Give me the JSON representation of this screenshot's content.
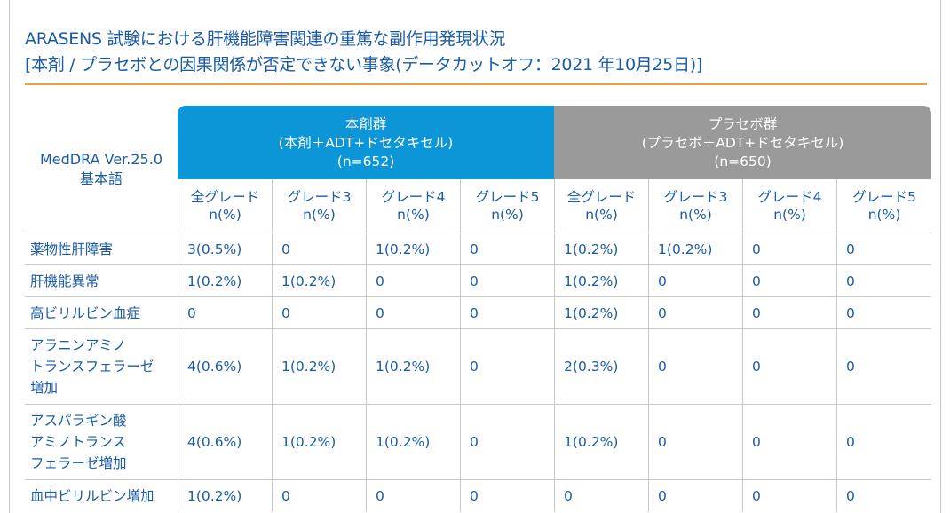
{
  "title": {
    "line1": "ARASENS 試験における肝機能障害関連の重篤な副作用発現状況",
    "line2": "[本剤 / プラセボとの因果関係が否定できない事象(データカットオフ：2021 年10月25日)]"
  },
  "table": {
    "corner": {
      "line1": "MedDRA Ver.25.0",
      "line2": "基本語"
    },
    "groups": [
      {
        "name": "本剤群",
        "regimen": "(本剤＋ADT+ドセタキセル)",
        "n": "(n=652)"
      },
      {
        "name": "プラセボ群",
        "regimen": "(プラセボ＋ADT+ドセタキセル)",
        "n": "(n=650)"
      }
    ],
    "subheaders": [
      {
        "grade": "全グレード",
        "unit": "n(%)"
      },
      {
        "grade": "グレード3",
        "unit": "n(%)"
      },
      {
        "grade": "グレード4",
        "unit": "n(%)"
      },
      {
        "grade": "グレード5",
        "unit": "n(%)"
      },
      {
        "grade": "全グレード",
        "unit": "n(%)"
      },
      {
        "grade": "グレード3",
        "unit": "n(%)"
      },
      {
        "grade": "グレード4",
        "unit": "n(%)"
      },
      {
        "grade": "グレード5",
        "unit": "n(%)"
      }
    ],
    "rows": [
      {
        "term": [
          "薬物性肝障害"
        ],
        "values": [
          "3(0.5%)",
          "0",
          "1(0.2%)",
          "0",
          "1(0.2%)",
          "1(0.2%)",
          "0",
          "0"
        ]
      },
      {
        "term": [
          "肝機能異常"
        ],
        "values": [
          "1(0.2%)",
          "1(0.2%)",
          "0",
          "0",
          "1(0.2%)",
          "0",
          "0",
          "0"
        ]
      },
      {
        "term": [
          "高ビリルビン血症"
        ],
        "values": [
          "0",
          "0",
          "0",
          "0",
          "1(0.2%)",
          "0",
          "0",
          "0"
        ]
      },
      {
        "term": [
          "アラニンアミノ",
          "トランスフェラーゼ",
          "増加"
        ],
        "values": [
          "4(0.6%)",
          "1(0.2%)",
          "1(0.2%)",
          "0",
          "2(0.3%)",
          "0",
          "0",
          "0"
        ]
      },
      {
        "term": [
          "アスパラギン酸",
          "アミノトランス",
          "フェラーゼ増加"
        ],
        "values": [
          "4(0.6%)",
          "1(0.2%)",
          "1(0.2%)",
          "0",
          "1(0.2%)",
          "0",
          "0",
          "0"
        ]
      },
      {
        "term": [
          "血中ビリルビン増加"
        ],
        "values": [
          "1(0.2%)",
          "0",
          "0",
          "0",
          "0",
          "0",
          "0",
          "0"
        ]
      }
    ]
  },
  "colors": {
    "text": "#1a5ba8",
    "active_header": "#0d96d7",
    "placebo_header": "#9a9a9a",
    "rule": "#f0a030",
    "grid": "#c8c8c8"
  }
}
